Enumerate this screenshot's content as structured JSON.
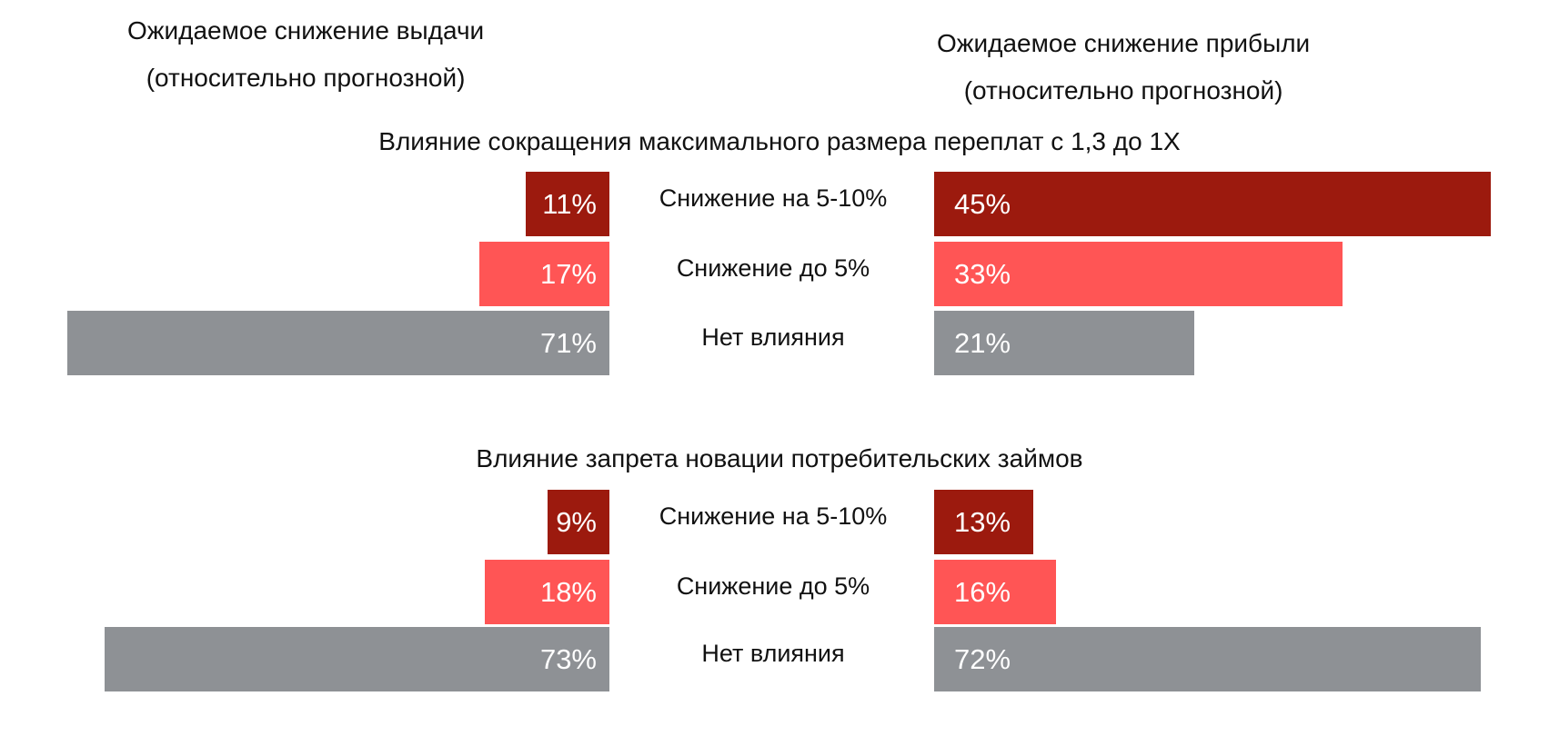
{
  "chart_data": {
    "type": "bar",
    "orientation": "horizontal-diverging",
    "left_title": [
      "Ожидаемое снижение выдачи",
      "(относительно прогнозной)"
    ],
    "right_title": [
      "Ожидаемое снижение прибыли",
      "(относительно прогнозной)"
    ],
    "categories": [
      "Снижение на 5-10%",
      "Снижение до 5%",
      "Нет влияния"
    ],
    "colors": [
      "#9c1a0e",
      "#ff5555",
      "#8e9195"
    ],
    "groups": [
      {
        "title": "Влияние сокращения максимального размера переплат с 1,3 до 1Х",
        "left_values": [
          11,
          17,
          71
        ],
        "right_values": [
          45,
          33,
          21
        ]
      },
      {
        "title": "Влияние запрета новации потребительских займов",
        "left_values": [
          9,
          18,
          73
        ],
        "right_values": [
          13,
          16,
          72
        ]
      }
    ],
    "unit": "%"
  }
}
